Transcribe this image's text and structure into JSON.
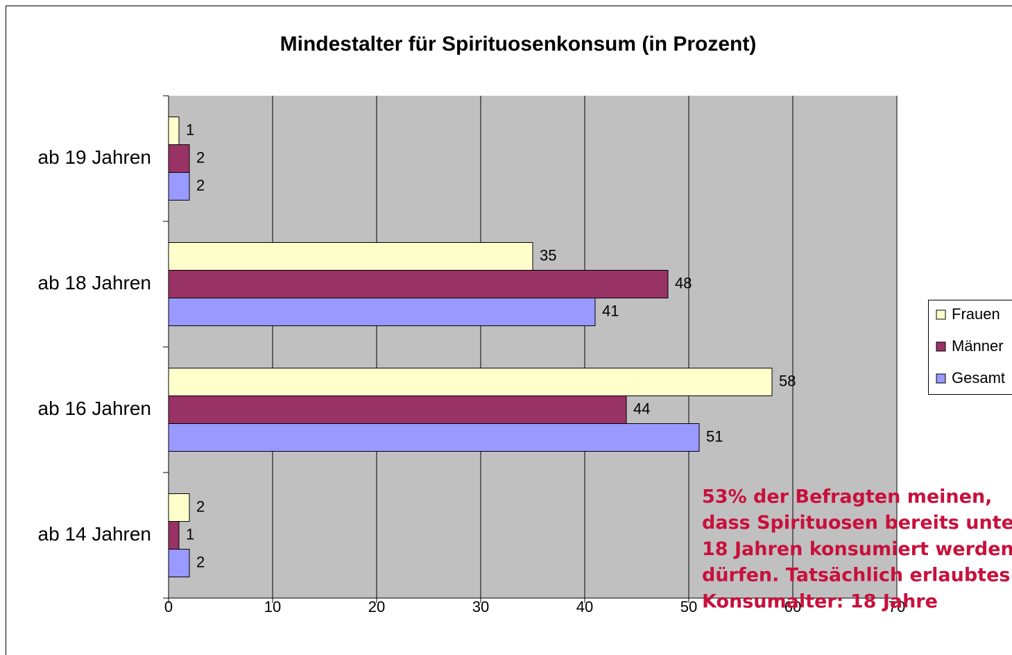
{
  "chart_data": {
    "type": "bar",
    "orientation": "horizontal",
    "title": "Mindestalter für Spirituosenkonsum (in Prozent)",
    "categories": [
      "ab 19 Jahren",
      "ab 18 Jahren",
      "ab 16 Jahren",
      "ab 14 Jahren"
    ],
    "series": [
      {
        "name": "Frauen",
        "color": "#ffffcc",
        "values": [
          1,
          35,
          58,
          2
        ]
      },
      {
        "name": "Männer",
        "color": "#993366",
        "values": [
          2,
          48,
          44,
          1
        ]
      },
      {
        "name": "Gesamt",
        "color": "#9999ff",
        "values": [
          2,
          41,
          51,
          2
        ]
      }
    ],
    "xlim": [
      0,
      70
    ],
    "xticks": [
      0,
      10,
      20,
      30,
      40,
      50,
      60,
      70
    ],
    "grid": true,
    "legend": "right",
    "annotation": [
      "53% der Befragten meinen,",
      "dass Spirituosen bereits unter",
      "18 Jahren konsumiert werden",
      "dürfen. Tatsächlich erlaubtes",
      "Konsumalter: 18 Jahre"
    ]
  }
}
